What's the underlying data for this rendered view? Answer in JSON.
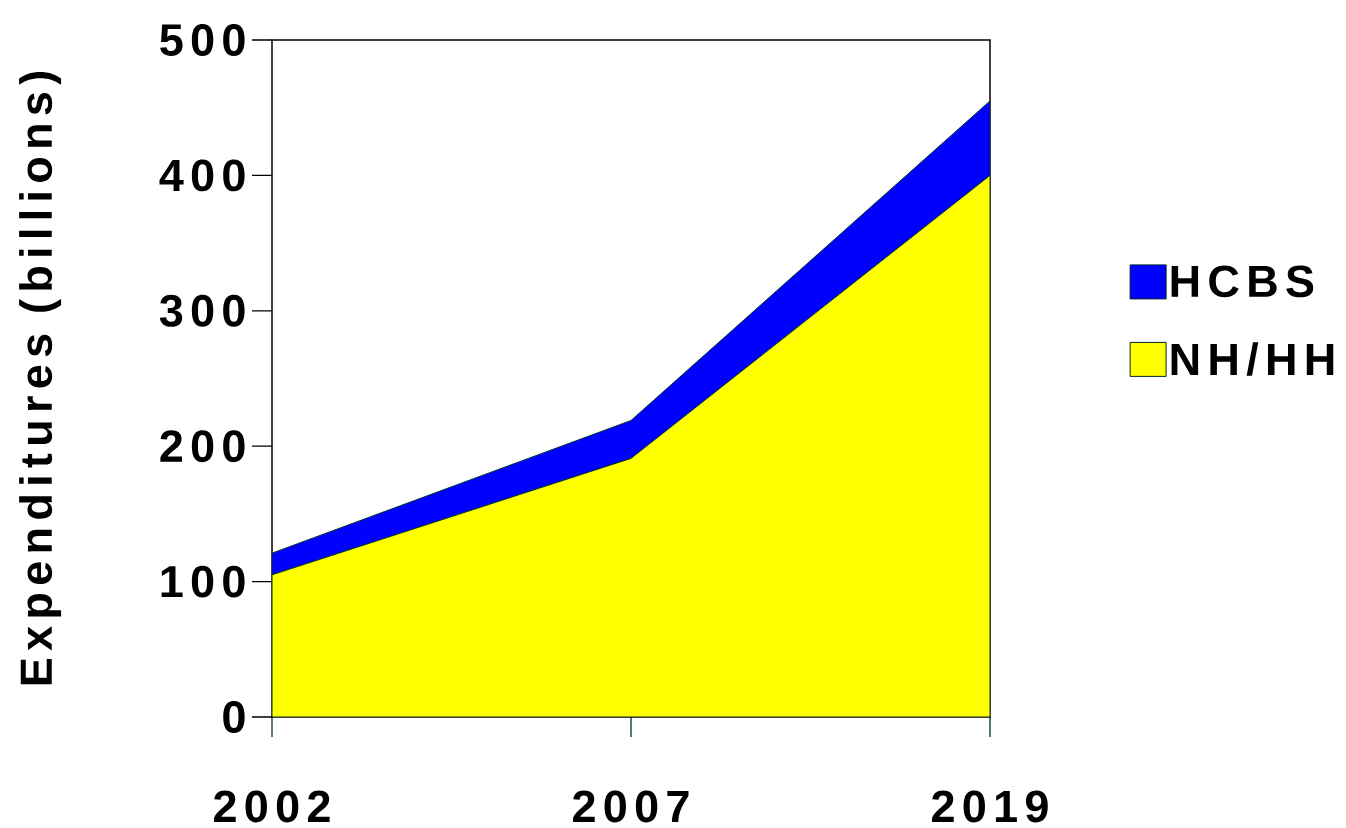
{
  "chart_data": {
    "type": "area",
    "ylabel": "Expenditures (billions)",
    "categories": [
      "2002",
      "2007",
      "2019"
    ],
    "series": [
      {
        "name": "NH/HH",
        "color": "#ffff00",
        "values": [
          105,
          191,
          400
        ]
      },
      {
        "name": "HCBS",
        "color": "#0000ff",
        "values": [
          16,
          28,
          55
        ]
      }
    ],
    "stacked": true,
    "ylim": [
      0,
      500
    ],
    "yticks": [
      0,
      100,
      200,
      300,
      400,
      500
    ],
    "legend": "right"
  }
}
